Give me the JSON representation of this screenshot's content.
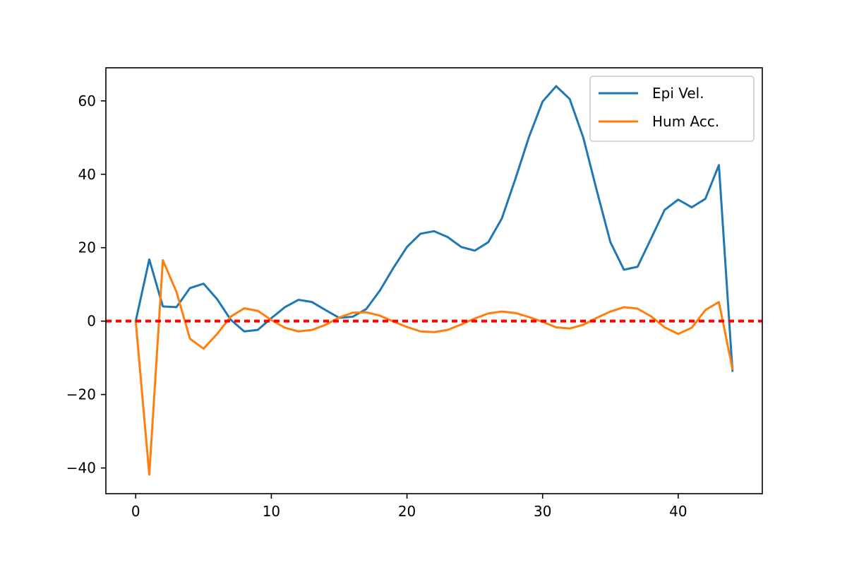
{
  "chart_data": {
    "type": "line",
    "title": "",
    "xlabel": "",
    "ylabel": "",
    "xlim": [
      -2.2,
      46.2
    ],
    "ylim": [
      -47,
      69
    ],
    "x_ticks": [
      0,
      10,
      20,
      30,
      40
    ],
    "x_tick_labels": [
      "0",
      "10",
      "20",
      "30",
      "40"
    ],
    "y_ticks": [
      -40,
      -20,
      0,
      20,
      40,
      60
    ],
    "y_tick_labels": [
      "−40",
      "−20",
      "0",
      "20",
      "40",
      "60"
    ],
    "grid": false,
    "legend_position": "upper-right",
    "x": [
      0,
      1,
      2,
      3,
      4,
      5,
      6,
      7,
      8,
      9,
      10,
      11,
      12,
      13,
      14,
      15,
      16,
      17,
      18,
      19,
      20,
      21,
      22,
      23,
      24,
      25,
      26,
      27,
      28,
      29,
      30,
      31,
      32,
      33,
      34,
      35,
      36,
      37,
      38,
      39,
      40,
      41,
      42,
      43,
      44
    ],
    "series": [
      {
        "name": "Epi Vel.",
        "color": "#1f77b4",
        "values": [
          0,
          16.8,
          4.0,
          3.8,
          9.0,
          10.2,
          6.0,
          0.4,
          -2.8,
          -2.4,
          0.8,
          3.8,
          5.8,
          5.2,
          3.0,
          0.9,
          1.2,
          3.3,
          8.3,
          14.5,
          20.2,
          23.8,
          24.5,
          22.9,
          20.2,
          19.2,
          21.5,
          28.0,
          38.8,
          50.2,
          59.8,
          64.0,
          60.5,
          50.0,
          35.5,
          21.5,
          14.0,
          14.8,
          22.5,
          30.3,
          33.1,
          31.0,
          33.3,
          42.5,
          -13.5
        ]
      },
      {
        "name": "Hum Acc.",
        "color": "#ff7f0e",
        "values": [
          0,
          -41.8,
          16.6,
          8.0,
          -4.8,
          -7.5,
          -3.5,
          1.2,
          3.5,
          2.8,
          0.3,
          -1.8,
          -2.8,
          -2.4,
          -1.0,
          1.0,
          2.3,
          2.4,
          1.5,
          -0.1,
          -1.6,
          -2.8,
          -3.0,
          -2.4,
          -0.9,
          0.7,
          2.1,
          2.6,
          2.2,
          1.1,
          -0.2,
          -1.7,
          -2.0,
          -1.0,
          0.9,
          2.6,
          3.8,
          3.4,
          1.3,
          -1.7,
          -3.5,
          -1.8,
          3.0,
          5.2,
          -13.0
        ]
      }
    ],
    "reference_line": {
      "y": 0,
      "color": "#ff0000",
      "style": "dotted"
    }
  }
}
